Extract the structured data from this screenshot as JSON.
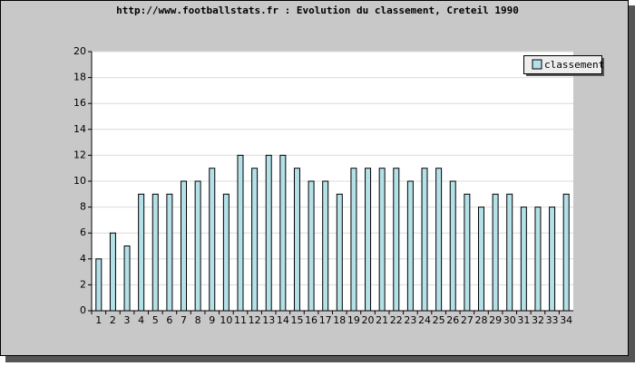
{
  "chart_data": {
    "type": "bar",
    "title": "http://www.footballstats.fr : Evolution du classement, Creteil 1990",
    "categories": [
      "1",
      "2",
      "3",
      "4",
      "5",
      "6",
      "7",
      "8",
      "9",
      "10",
      "11",
      "12",
      "13",
      "14",
      "15",
      "16",
      "17",
      "18",
      "19",
      "20",
      "21",
      "22",
      "23",
      "24",
      "25",
      "26",
      "27",
      "28",
      "29",
      "30",
      "31",
      "32",
      "33",
      "34"
    ],
    "series": [
      {
        "name": "classement",
        "color": "#b4e0e8",
        "values": [
          4,
          6,
          5,
          9,
          9,
          9,
          10,
          10,
          11,
          9,
          12,
          11,
          12,
          12,
          11,
          10,
          10,
          9,
          11,
          11,
          11,
          11,
          10,
          11,
          11,
          10,
          9,
          8,
          9,
          9,
          8,
          8,
          8,
          9
        ]
      }
    ],
    "ylim": [
      0,
      20
    ],
    "yticks": [
      0,
      2,
      4,
      6,
      8,
      10,
      12,
      14,
      16,
      18,
      20
    ],
    "grid": true,
    "legend": "top-right"
  }
}
